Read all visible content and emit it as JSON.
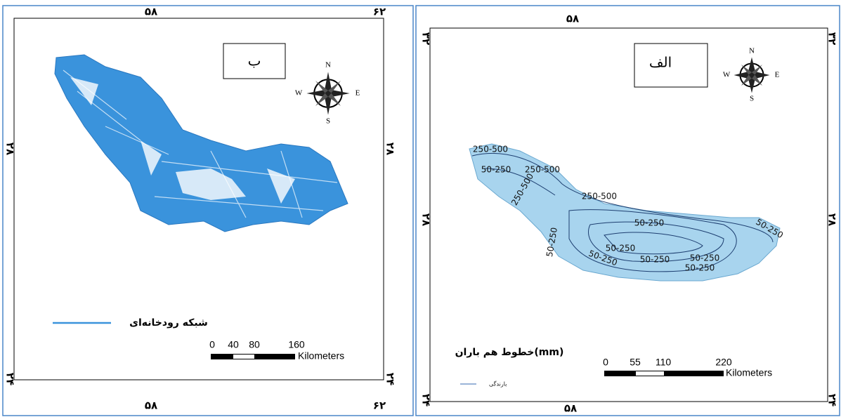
{
  "left_map": {
    "label": "ب",
    "top_ticks": [
      "۵۸",
      "۶۲"
    ],
    "bottom_ticks": [
      "۵۸",
      "۶۲"
    ],
    "left_ticks": [
      "۲۸",
      "۲۴"
    ],
    "right_ticks": [
      "۲۸",
      "۲۴"
    ],
    "compass": [
      "N",
      "E",
      "S",
      "W"
    ],
    "legend": "شبکه رودخانه‌ای",
    "scale": {
      "ticks": [
        "0",
        "40",
        "80",
        "160"
      ],
      "unit": "Kilometers"
    }
  },
  "right_map": {
    "label": "الف",
    "top_ticks": [
      "۵۸"
    ],
    "bottom_ticks": [
      "۵۸"
    ],
    "left_ticks": [
      "۳۲",
      "۲۸",
      "۲۴"
    ],
    "right_ticks": [
      "۳۲",
      "۲۸",
      "۲۴"
    ],
    "compass": [
      "N",
      "E",
      "S",
      "W"
    ],
    "contour_labels": [
      "250-500",
      "50-250",
      "250-500",
      "250-500",
      "250-500",
      "50-250",
      "50-250",
      "50-250",
      "50-250",
      "50-250",
      "50-250",
      "50-250",
      "50-250"
    ],
    "legend_title": "خطوط هم باران(mm)",
    "legend_item": "بارندگی",
    "scale": {
      "ticks": [
        "0",
        "55",
        "110",
        "220"
      ],
      "unit": "Kilometers"
    }
  }
}
